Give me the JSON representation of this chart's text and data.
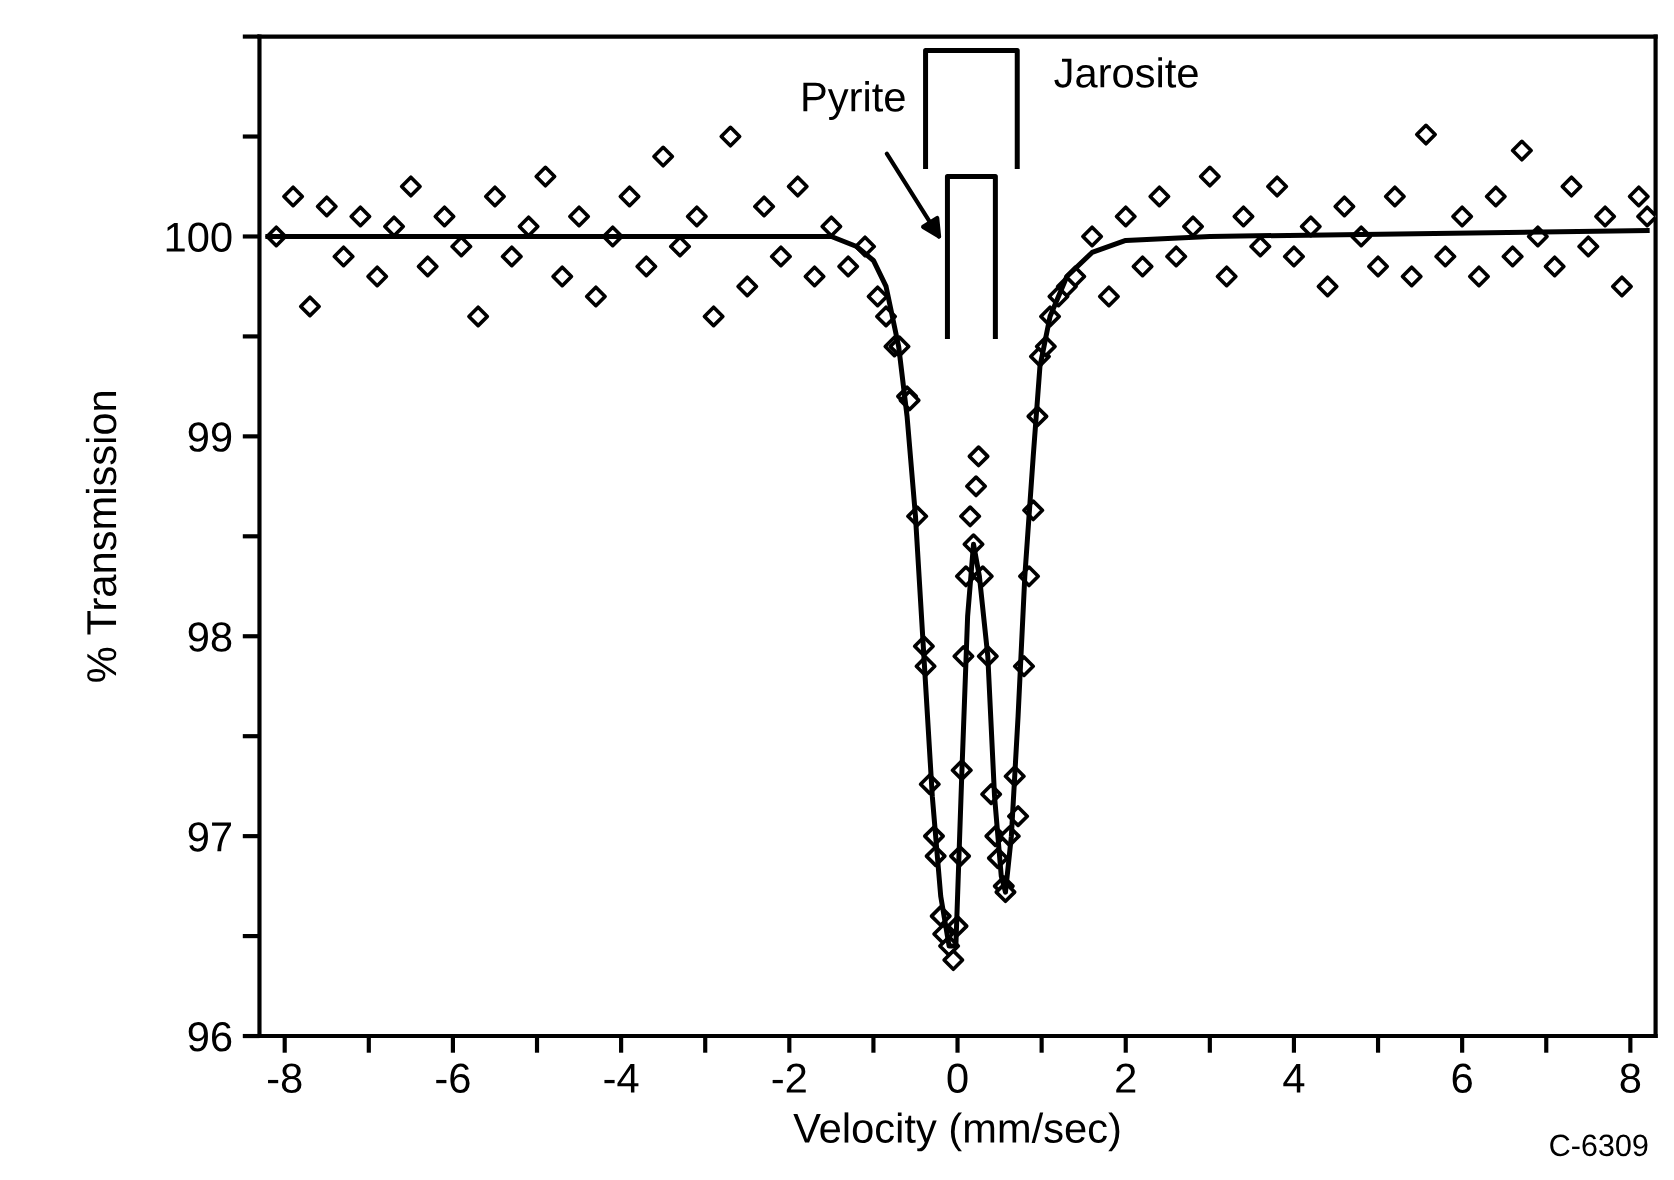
{
  "chart_data": {
    "type": "scatter",
    "xlabel": "Velocity (mm/sec)",
    "ylabel": "% Transmission",
    "xlim": [
      -8.3,
      8.3
    ],
    "ylim": [
      96,
      101
    ],
    "xticks": [
      -8,
      {
        "value": -7,
        "label": null
      },
      -6,
      {
        "value": -5,
        "label": null
      },
      -4,
      {
        "value": -3,
        "label": null
      },
      -2,
      {
        "value": -1,
        "label": null
      },
      0,
      {
        "value": 1,
        "label": null
      },
      2,
      {
        "value": 3,
        "label": null
      },
      4,
      {
        "value": 5,
        "label": null
      },
      6,
      {
        "value": 7,
        "label": null
      },
      8
    ],
    "yticks": [
      96,
      {
        "value": 96.5,
        "label": null
      },
      97,
      {
        "value": 97.5,
        "label": null
      },
      98,
      {
        "value": 98.5,
        "label": null
      },
      99,
      {
        "value": 99.5,
        "label": null
      },
      100,
      {
        "value": 100.5,
        "label": null
      },
      {
        "value": 101,
        "label": null
      }
    ],
    "grid": false,
    "legend": false,
    "annotations": [
      {
        "text": "Pyrite",
        "x": -0.19,
        "y": 99.98
      },
      {
        "text": "Jarosite",
        "x": 0.71,
        "y": 100.93
      },
      "C-6309"
    ],
    "series": [
      {
        "marker": "diamond",
        "color": "#000000",
        "x": [
          -8.1,
          -7.9,
          -7.7,
          -7.5,
          -7.3,
          -7.1,
          -6.9,
          -6.7,
          -6.5,
          -6.3,
          -6.1,
          -5.9,
          -5.7,
          -5.5,
          -5.3,
          -5.1,
          -4.9,
          -4.7,
          -4.5,
          -4.3,
          -4.1,
          -3.9,
          -3.7,
          -3.5,
          -3.3,
          -3.1,
          -2.9,
          -2.7,
          -2.5,
          -2.3,
          -2.1,
          -1.9,
          -1.7,
          -1.5,
          -1.3,
          -1.1,
          -0.95,
          -0.85,
          -0.75,
          -0.69,
          -0.6,
          -0.57,
          -0.48,
          -0.4,
          -0.38,
          -0.33,
          -0.28,
          -0.26,
          -0.2,
          -0.17,
          -0.1,
          -0.05,
          0.0,
          0.03,
          0.05,
          0.07,
          0.1,
          0.15,
          0.19,
          0.22,
          0.25,
          0.3,
          0.36,
          0.4,
          0.45,
          0.48,
          0.55,
          0.57,
          0.62,
          0.68,
          0.72,
          0.79,
          0.85,
          0.9,
          0.95,
          0.98,
          1.05,
          1.1,
          1.2,
          1.3,
          1.4,
          1.6,
          1.8,
          2.0,
          2.2,
          2.4,
          2.6,
          2.8,
          3.0,
          3.2,
          3.4,
          3.6,
          3.8,
          4.0,
          4.2,
          4.4,
          4.6,
          4.8,
          5.0,
          5.2,
          5.4,
          5.57,
          5.8,
          6.0,
          6.2,
          6.4,
          6.6,
          6.71,
          6.9,
          7.1,
          7.3,
          7.5,
          7.7,
          7.9,
          8.1,
          8.2
        ],
        "values": [
          100.0,
          100.2,
          99.65,
          100.15,
          99.9,
          100.1,
          99.8,
          100.05,
          100.25,
          99.85,
          100.1,
          99.95,
          99.6,
          100.2,
          99.9,
          100.05,
          100.3,
          99.8,
          100.1,
          99.7,
          100.0,
          100.2,
          99.85,
          100.4,
          99.95,
          100.1,
          99.6,
          100.5,
          99.75,
          100.15,
          99.9,
          100.25,
          99.8,
          100.05,
          99.85,
          99.95,
          99.7,
          99.6,
          99.45,
          99.45,
          99.2,
          99.18,
          98.6,
          97.95,
          97.85,
          97.26,
          97.0,
          96.9,
          96.6,
          96.51,
          96.45,
          96.38,
          96.55,
          96.9,
          97.33,
          97.9,
          98.3,
          98.6,
          98.46,
          98.75,
          98.9,
          98.3,
          97.9,
          97.21,
          97.0,
          96.89,
          96.75,
          96.72,
          97.0,
          97.3,
          97.1,
          97.85,
          98.3,
          98.63,
          99.1,
          99.4,
          99.45,
          99.6,
          99.7,
          99.75,
          99.8,
          100.0,
          99.7,
          100.1,
          99.85,
          100.2,
          99.9,
          100.05,
          100.3,
          99.8,
          100.1,
          99.95,
          100.25,
          99.9,
          100.05,
          99.75,
          100.15,
          100.0,
          99.85,
          100.2,
          99.8,
          100.51,
          99.9,
          100.1,
          99.8,
          100.2,
          99.9,
          100.43,
          100.0,
          99.85,
          100.25,
          99.95,
          100.1,
          99.75,
          100.2,
          100.1
        ]
      },
      {
        "type": "line",
        "marker": "none",
        "line_style": "solid",
        "color": "#000000",
        "x": [
          -8.2,
          -1.5,
          -1.2,
          -1.0,
          -0.85,
          -0.7,
          -0.6,
          -0.5,
          -0.4,
          -0.3,
          -0.2,
          -0.1,
          -0.02,
          0.05,
          0.12,
          0.19,
          0.26,
          0.36,
          0.44,
          0.52,
          0.57,
          0.64,
          0.72,
          0.8,
          0.9,
          0.98,
          1.1,
          1.3,
          1.6,
          2.0,
          3.0,
          8.2
        ],
        "values": [
          100.0,
          100.0,
          99.95,
          99.88,
          99.75,
          99.45,
          99.1,
          98.6,
          97.9,
          97.2,
          96.7,
          96.45,
          96.45,
          97.3,
          98.1,
          98.46,
          98.3,
          97.9,
          97.2,
          96.8,
          96.72,
          97.0,
          97.6,
          98.3,
          98.9,
          99.35,
          99.6,
          99.8,
          99.92,
          99.98,
          100.0,
          100.03
        ]
      },
      {
        "type": "line",
        "marker": "none",
        "line_style": "solid",
        "color": "#000000",
        "x": [
          -0.38,
          -0.38,
          0.71,
          0.71
        ],
        "values": [
          100.35,
          100.93,
          100.93,
          100.35
        ]
      },
      {
        "type": "line",
        "marker": "none",
        "line_style": "solid",
        "color": "#000000",
        "x": [
          -0.12,
          -0.12,
          0.45,
          0.45
        ],
        "values": [
          99.5,
          100.3,
          100.3,
          99.5
        ]
      }
    ]
  }
}
